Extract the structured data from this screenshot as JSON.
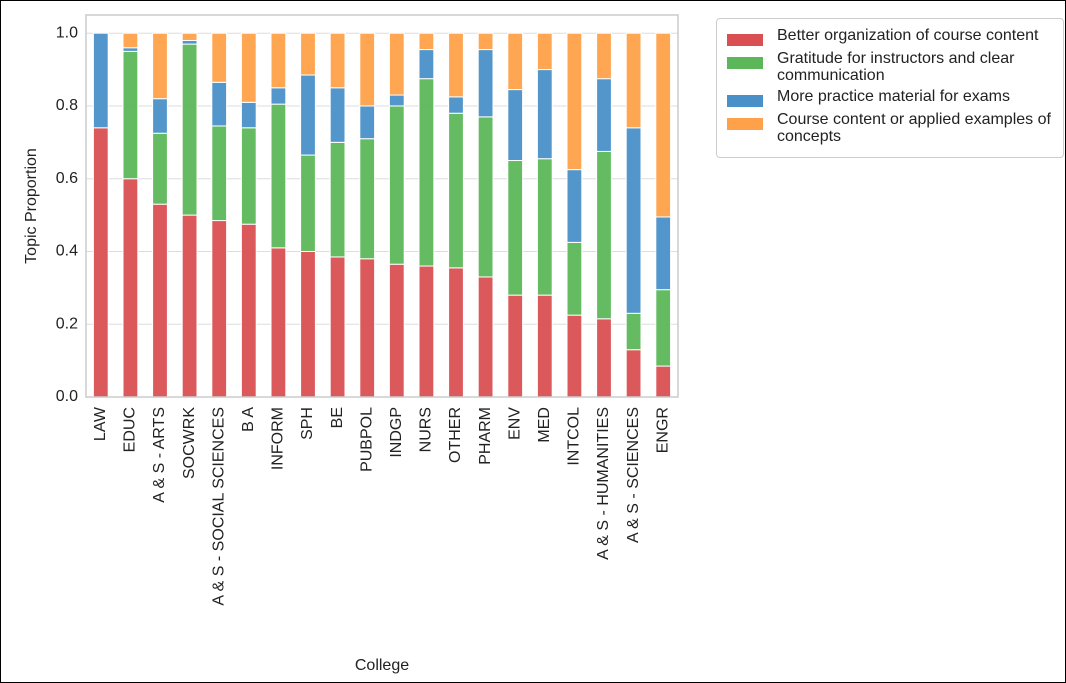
{
  "chart_data": {
    "type": "stacked_bar",
    "x_label": "College",
    "y_label": "Topic Proportion",
    "categories": [
      "LAW",
      "EDUC",
      "A & S - ARTS",
      "SOCWRK",
      "A & S - SOCIAL SCIENCES",
      "B A",
      "INFORM",
      "SPH",
      "BE",
      "PUBPOL",
      "INDGP",
      "NURS",
      "OTHER",
      "PHARM",
      "ENV",
      "MED",
      "INTCOL",
      "A & S - HUMANITIES",
      "A & S - SCIENCES",
      "ENGR"
    ],
    "series": [
      {
        "name": "Better organization of course content",
        "color": "#d94f52",
        "values": [
          0.74,
          0.6,
          0.53,
          0.5,
          0.485,
          0.475,
          0.41,
          0.4,
          0.385,
          0.38,
          0.365,
          0.36,
          0.355,
          0.33,
          0.28,
          0.28,
          0.225,
          0.215,
          0.13,
          0.085
        ]
      },
      {
        "name": "Gratitude for instructors and clear communication",
        "color": "#5cb75a",
        "values": [
          0.0,
          0.35,
          0.195,
          0.47,
          0.26,
          0.265,
          0.395,
          0.265,
          0.315,
          0.33,
          0.435,
          0.515,
          0.425,
          0.44,
          0.37,
          0.375,
          0.2,
          0.46,
          0.1,
          0.21
        ]
      },
      {
        "name": "More practice material for exams",
        "color": "#4a90c8",
        "values": [
          0.26,
          0.01,
          0.095,
          0.01,
          0.12,
          0.07,
          0.045,
          0.22,
          0.15,
          0.09,
          0.03,
          0.08,
          0.045,
          0.185,
          0.195,
          0.245,
          0.2,
          0.2,
          0.51,
          0.2
        ]
      },
      {
        "name": "Course content or applied examples of concepts",
        "color": "#ffa14a",
        "values": [
          0.0,
          0.04,
          0.18,
          0.02,
          0.135,
          0.19,
          0.15,
          0.115,
          0.15,
          0.2,
          0.17,
          0.045,
          0.175,
          0.045,
          0.155,
          0.1,
          0.375,
          0.125,
          0.26,
          0.505
        ]
      }
    ],
    "ylim": [
      0,
      1.05
    ],
    "yticks": [
      {
        "value": 0,
        "label": "0.0"
      },
      0.2,
      0.4,
      0.6,
      0.8,
      {
        "value": 1,
        "label": "1.0"
      }
    ],
    "grid": true,
    "legend": "upper right outside"
  }
}
